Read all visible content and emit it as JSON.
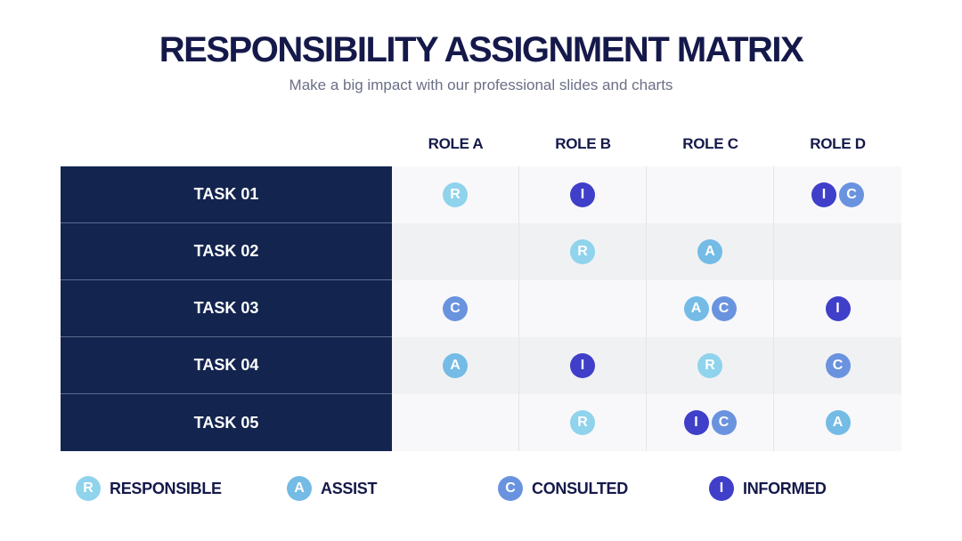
{
  "title": "RESPONSIBILITY ASSIGNMENT MATRIX",
  "subtitle": "Make a big impact with our professional slides and charts",
  "roles": [
    "ROLE A",
    "ROLE B",
    "ROLE C",
    "ROLE D"
  ],
  "tasks": [
    {
      "label": "TASK 01",
      "cells": [
        [
          "R"
        ],
        [
          "I"
        ],
        [],
        [
          "I",
          "C"
        ]
      ]
    },
    {
      "label": "TASK 02",
      "cells": [
        [],
        [
          "R"
        ],
        [
          "A"
        ],
        []
      ]
    },
    {
      "label": "TASK 03",
      "cells": [
        [
          "C"
        ],
        [],
        [
          "A",
          "C"
        ],
        [
          "I"
        ]
      ]
    },
    {
      "label": "TASK 04",
      "cells": [
        [
          "A"
        ],
        [
          "I"
        ],
        [
          "R"
        ],
        [
          "C"
        ]
      ]
    },
    {
      "label": "TASK 05",
      "cells": [
        [],
        [
          "R"
        ],
        [
          "I",
          "C"
        ],
        [
          "A"
        ]
      ]
    }
  ],
  "legend": [
    {
      "letter": "R",
      "label": "RESPONSIBLE"
    },
    {
      "letter": "A",
      "label": "ASSIST"
    },
    {
      "letter": "C",
      "label": "CONSULTED"
    },
    {
      "letter": "I",
      "label": "INFORMED"
    }
  ],
  "colors": {
    "R": "#8fd3ec",
    "A": "#74bbe6",
    "C": "#6a93df",
    "I": "#3f3fc9",
    "task_bg": "#13244f",
    "title": "#15194a"
  }
}
